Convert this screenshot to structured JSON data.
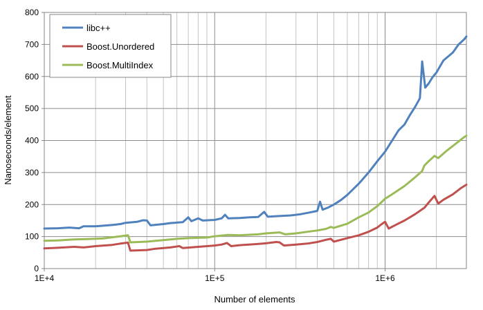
{
  "chart_data": {
    "type": "line",
    "title": "",
    "xlabel": "Number of elements",
    "ylabel": "Nanoseconds/element",
    "x_scale": "log",
    "xlim": [
      10000,
      3000000
    ],
    "ylim": [
      0,
      800
    ],
    "y_ticks": [
      0,
      100,
      200,
      300,
      400,
      500,
      600,
      700,
      800
    ],
    "x_ticks": [
      10000,
      100000,
      1000000
    ],
    "x_tick_labels": [
      "1E+4",
      "1E+5",
      "1E+6"
    ],
    "grid": {
      "major_y": true,
      "major_x": true,
      "minor_x": true
    },
    "legend_position": "top-left",
    "series": [
      {
        "name": "libc++",
        "color": "#4f81bd",
        "points": [
          [
            10000,
            125
          ],
          [
            12000,
            126
          ],
          [
            14000,
            128
          ],
          [
            16000,
            126
          ],
          [
            17000,
            132
          ],
          [
            20000,
            132
          ],
          [
            25000,
            136
          ],
          [
            28000,
            139
          ],
          [
            30000,
            143
          ],
          [
            35000,
            146
          ],
          [
            38000,
            151
          ],
          [
            40000,
            150
          ],
          [
            42000,
            135
          ],
          [
            50000,
            139
          ],
          [
            55000,
            142
          ],
          [
            65000,
            145
          ],
          [
            70000,
            160
          ],
          [
            73000,
            148
          ],
          [
            80000,
            157
          ],
          [
            85000,
            150
          ],
          [
            100000,
            152
          ],
          [
            110000,
            157
          ],
          [
            115000,
            168
          ],
          [
            120000,
            157
          ],
          [
            140000,
            158
          ],
          [
            160000,
            160
          ],
          [
            180000,
            161
          ],
          [
            195000,
            177
          ],
          [
            205000,
            162
          ],
          [
            240000,
            164
          ],
          [
            280000,
            166
          ],
          [
            320000,
            170
          ],
          [
            360000,
            175
          ],
          [
            400000,
            180
          ],
          [
            415000,
            209
          ],
          [
            430000,
            184
          ],
          [
            460000,
            190
          ],
          [
            500000,
            200
          ],
          [
            550000,
            214
          ],
          [
            600000,
            230
          ],
          [
            700000,
            265
          ],
          [
            800000,
            300
          ],
          [
            900000,
            335
          ],
          [
            1000000,
            365
          ],
          [
            1100000,
            400
          ],
          [
            1200000,
            432
          ],
          [
            1300000,
            450
          ],
          [
            1400000,
            480
          ],
          [
            1500000,
            505
          ],
          [
            1600000,
            532
          ],
          [
            1650000,
            647
          ],
          [
            1720000,
            565
          ],
          [
            1800000,
            578
          ],
          [
            1900000,
            598
          ],
          [
            2000000,
            612
          ],
          [
            2200000,
            650
          ],
          [
            2500000,
            675
          ],
          [
            2700000,
            700
          ],
          [
            2900000,
            715
          ],
          [
            3000000,
            725
          ]
        ]
      },
      {
        "name": "Boost.Unordered",
        "color": "#c0504d",
        "points": [
          [
            10000,
            63
          ],
          [
            12000,
            65
          ],
          [
            15000,
            68
          ],
          [
            17000,
            66
          ],
          [
            20000,
            70
          ],
          [
            25000,
            74
          ],
          [
            28000,
            78
          ],
          [
            31000,
            81
          ],
          [
            32000,
            56
          ],
          [
            40000,
            58
          ],
          [
            45000,
            62
          ],
          [
            55000,
            66
          ],
          [
            62000,
            70
          ],
          [
            65000,
            64
          ],
          [
            80000,
            68
          ],
          [
            100000,
            72
          ],
          [
            110000,
            75
          ],
          [
            118000,
            80
          ],
          [
            125000,
            70
          ],
          [
            140000,
            73
          ],
          [
            170000,
            76
          ],
          [
            200000,
            79
          ],
          [
            230000,
            83
          ],
          [
            240000,
            82
          ],
          [
            255000,
            72
          ],
          [
            300000,
            75
          ],
          [
            350000,
            78
          ],
          [
            400000,
            83
          ],
          [
            450000,
            90
          ],
          [
            480000,
            93
          ],
          [
            500000,
            84
          ],
          [
            600000,
            95
          ],
          [
            700000,
            104
          ],
          [
            800000,
            115
          ],
          [
            900000,
            128
          ],
          [
            950000,
            138
          ],
          [
            1000000,
            146
          ],
          [
            1050000,
            125
          ],
          [
            1150000,
            136
          ],
          [
            1300000,
            150
          ],
          [
            1500000,
            170
          ],
          [
            1700000,
            190
          ],
          [
            1800000,
            206
          ],
          [
            1950000,
            227
          ],
          [
            2050000,
            203
          ],
          [
            2200000,
            215
          ],
          [
            2500000,
            232
          ],
          [
            2800000,
            252
          ],
          [
            3000000,
            262
          ]
        ]
      },
      {
        "name": "Boost.MultiIndex",
        "color": "#9bbb59",
        "points": [
          [
            10000,
            87
          ],
          [
            12000,
            88
          ],
          [
            15000,
            91
          ],
          [
            18000,
            92
          ],
          [
            22000,
            94
          ],
          [
            28000,
            101
          ],
          [
            31000,
            104
          ],
          [
            32000,
            82
          ],
          [
            40000,
            84
          ],
          [
            50000,
            89
          ],
          [
            60000,
            93
          ],
          [
            70000,
            95
          ],
          [
            90000,
            97
          ],
          [
            100000,
            101
          ],
          [
            120000,
            105
          ],
          [
            140000,
            104
          ],
          [
            180000,
            107
          ],
          [
            200000,
            110
          ],
          [
            240000,
            113
          ],
          [
            260000,
            107
          ],
          [
            300000,
            110
          ],
          [
            350000,
            115
          ],
          [
            400000,
            119
          ],
          [
            450000,
            124
          ],
          [
            480000,
            130
          ],
          [
            500000,
            127
          ],
          [
            600000,
            140
          ],
          [
            700000,
            160
          ],
          [
            800000,
            175
          ],
          [
            900000,
            195
          ],
          [
            1000000,
            218
          ],
          [
            1100000,
            232
          ],
          [
            1300000,
            258
          ],
          [
            1500000,
            285
          ],
          [
            1650000,
            305
          ],
          [
            1700000,
            322
          ],
          [
            1800000,
            335
          ],
          [
            1950000,
            352
          ],
          [
            2050000,
            345
          ],
          [
            2300000,
            368
          ],
          [
            2600000,
            390
          ],
          [
            2900000,
            410
          ],
          [
            3000000,
            415
          ]
        ]
      }
    ]
  }
}
